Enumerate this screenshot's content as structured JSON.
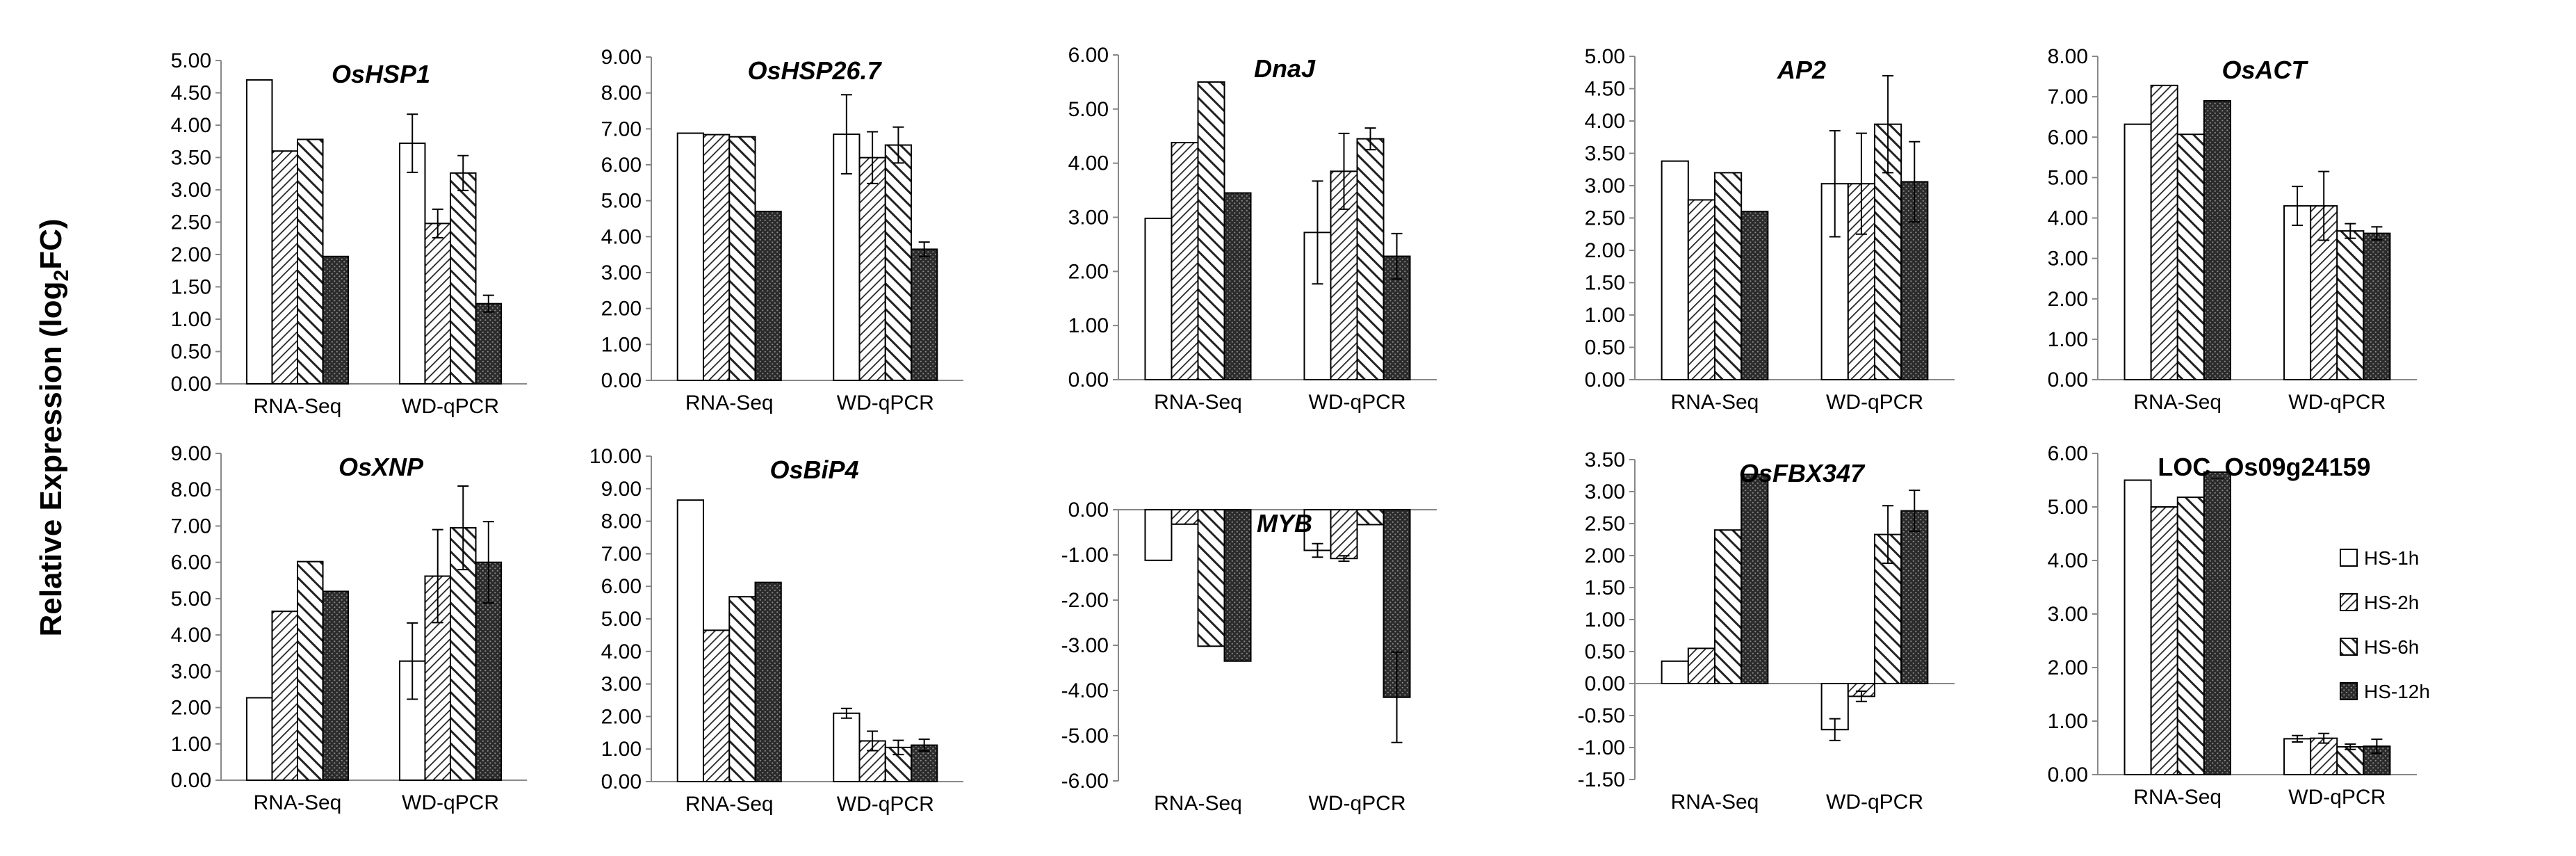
{
  "figure": {
    "y_axis_label": "Relative Expression (log",
    "y_axis_label_sub": "2",
    "y_axis_label_end": "FC)"
  },
  "series_names": [
    "HS-1h",
    "HS-2h",
    "HS-6h",
    "HS-12h"
  ],
  "categories": [
    "RNA-Seq",
    "WD-qPCR"
  ],
  "chart_data": [
    {
      "type": "bar",
      "title": "OsHSP1",
      "italic": true,
      "ylim": [
        0,
        5
      ],
      "step": 0.5,
      "series": [
        {
          "name": "HS-1h",
          "values": [
            4.7,
            3.72
          ],
          "errors": [
            0,
            0.45
          ]
        },
        {
          "name": "HS-2h",
          "values": [
            3.6,
            2.48
          ],
          "errors": [
            0,
            0.22
          ]
        },
        {
          "name": "HS-6h",
          "values": [
            3.78,
            3.26
          ],
          "errors": [
            0,
            0.27
          ]
        },
        {
          "name": "HS-12h",
          "values": [
            1.97,
            1.24
          ],
          "errors": [
            0,
            0.13
          ]
        }
      ]
    },
    {
      "type": "bar",
      "title": "OsHSP26.7",
      "italic": true,
      "ylim": [
        0,
        9
      ],
      "step": 1,
      "series": [
        {
          "name": "HS-1h",
          "values": [
            6.88,
            6.85
          ],
          "errors": [
            0,
            1.1
          ]
        },
        {
          "name": "HS-2h",
          "values": [
            6.84,
            6.2
          ],
          "errors": [
            0,
            0.72
          ]
        },
        {
          "name": "HS-6h",
          "values": [
            6.78,
            6.55
          ],
          "errors": [
            0,
            0.5
          ]
        },
        {
          "name": "HS-12h",
          "values": [
            4.7,
            3.65
          ],
          "errors": [
            0,
            0.2
          ]
        }
      ]
    },
    {
      "type": "bar",
      "title": "DnaJ",
      "italic": true,
      "ylim": [
        0,
        6
      ],
      "step": 1,
      "series": [
        {
          "name": "HS-1h",
          "values": [
            2.98,
            2.72
          ],
          "errors": [
            0,
            0.95
          ]
        },
        {
          "name": "HS-2h",
          "values": [
            4.38,
            3.85
          ],
          "errors": [
            0,
            0.7
          ]
        },
        {
          "name": "HS-6h",
          "values": [
            5.5,
            4.45
          ],
          "errors": [
            0,
            0.2
          ]
        },
        {
          "name": "HS-12h",
          "values": [
            3.45,
            2.28
          ],
          "errors": [
            0,
            0.42
          ]
        }
      ]
    },
    {
      "type": "bar",
      "title": "AP2",
      "italic": true,
      "ylim": [
        0,
        5
      ],
      "step": 0.5,
      "series": [
        {
          "name": "HS-1h",
          "values": [
            3.38,
            3.03
          ],
          "errors": [
            0,
            0.82
          ]
        },
        {
          "name": "HS-2h",
          "values": [
            2.78,
            3.03
          ],
          "errors": [
            0,
            0.78
          ]
        },
        {
          "name": "HS-6h",
          "values": [
            3.2,
            3.95
          ],
          "errors": [
            0,
            0.75
          ]
        },
        {
          "name": "HS-12h",
          "values": [
            2.6,
            3.06
          ],
          "errors": [
            0,
            0.62
          ]
        }
      ]
    },
    {
      "type": "bar",
      "title": "OsACT",
      "italic": true,
      "ylim": [
        0,
        8
      ],
      "step": 1,
      "series": [
        {
          "name": "HS-1h",
          "values": [
            6.32,
            4.3
          ],
          "errors": [
            0,
            0.48
          ]
        },
        {
          "name": "HS-2h",
          "values": [
            7.28,
            4.3
          ],
          "errors": [
            0,
            0.85
          ]
        },
        {
          "name": "HS-6h",
          "values": [
            6.07,
            3.68
          ],
          "errors": [
            0,
            0.18
          ]
        },
        {
          "name": "HS-12h",
          "values": [
            6.9,
            3.62
          ],
          "errors": [
            0,
            0.16
          ]
        }
      ]
    },
    {
      "type": "bar",
      "title": "OsXNP",
      "italic": true,
      "ylim": [
        0,
        9
      ],
      "step": 1,
      "series": [
        {
          "name": "HS-1h",
          "values": [
            2.27,
            3.28
          ],
          "errors": [
            0,
            1.05
          ]
        },
        {
          "name": "HS-2h",
          "values": [
            4.65,
            5.62
          ],
          "errors": [
            0,
            1.28
          ]
        },
        {
          "name": "HS-6h",
          "values": [
            6.02,
            6.95
          ],
          "errors": [
            0,
            1.15
          ]
        },
        {
          "name": "HS-12h",
          "values": [
            5.2,
            6.0
          ],
          "errors": [
            0,
            1.12
          ]
        }
      ]
    },
    {
      "type": "bar",
      "title": "OsBiP4",
      "italic": true,
      "ylim": [
        0,
        10
      ],
      "step": 1,
      "series": [
        {
          "name": "HS-1h",
          "values": [
            8.65,
            2.1
          ],
          "errors": [
            0,
            0.15
          ]
        },
        {
          "name": "HS-2h",
          "values": [
            4.65,
            1.25
          ],
          "errors": [
            0,
            0.3
          ]
        },
        {
          "name": "HS-6h",
          "values": [
            5.68,
            1.05
          ],
          "errors": [
            0,
            0.22
          ]
        },
        {
          "name": "HS-12h",
          "values": [
            6.12,
            1.12
          ],
          "errors": [
            0,
            0.18
          ]
        }
      ]
    },
    {
      "type": "bar",
      "title": "MYB",
      "italic": true,
      "ylim": [
        -6,
        0
      ],
      "step": 1,
      "series": [
        {
          "name": "HS-1h",
          "values": [
            -1.12,
            -0.9
          ],
          "errors": [
            0,
            0.15
          ]
        },
        {
          "name": "HS-2h",
          "values": [
            -0.32,
            -1.08
          ],
          "errors": [
            0,
            0.06
          ]
        },
        {
          "name": "HS-6h",
          "values": [
            -3.02,
            -0.33
          ],
          "errors": [
            0,
            0
          ]
        },
        {
          "name": "HS-12h",
          "values": [
            -3.35,
            -4.15
          ],
          "errors": [
            0,
            1.0
          ]
        }
      ]
    },
    {
      "type": "bar",
      "title": "OsFBX347",
      "italic": true,
      "ylim": [
        -1.5,
        3.5
      ],
      "step": 0.5,
      "series": [
        {
          "name": "HS-1h",
          "values": [
            0.35,
            -0.72
          ],
          "errors": [
            0,
            0.17
          ]
        },
        {
          "name": "HS-2h",
          "values": [
            0.55,
            -0.2
          ],
          "errors": [
            0,
            0.08
          ]
        },
        {
          "name": "HS-6h",
          "values": [
            2.4,
            2.33
          ],
          "errors": [
            0,
            0.45
          ]
        },
        {
          "name": "HS-12h",
          "values": [
            3.27,
            2.7
          ],
          "errors": [
            0,
            0.32
          ]
        }
      ]
    },
    {
      "type": "bar",
      "title": "LOC_Os09g24159",
      "italic": false,
      "ylim": [
        0,
        6
      ],
      "step": 1,
      "legend": "right",
      "series": [
        {
          "name": "HS-1h",
          "values": [
            5.5,
            0.67
          ],
          "errors": [
            0,
            0.06
          ]
        },
        {
          "name": "HS-2h",
          "values": [
            5.0,
            0.68
          ],
          "errors": [
            0,
            0.09
          ]
        },
        {
          "name": "HS-6h",
          "values": [
            5.18,
            0.52
          ],
          "errors": [
            0,
            0.05
          ]
        },
        {
          "name": "HS-12h",
          "values": [
            5.65,
            0.53
          ],
          "errors": [
            0,
            0.13
          ]
        }
      ]
    }
  ]
}
